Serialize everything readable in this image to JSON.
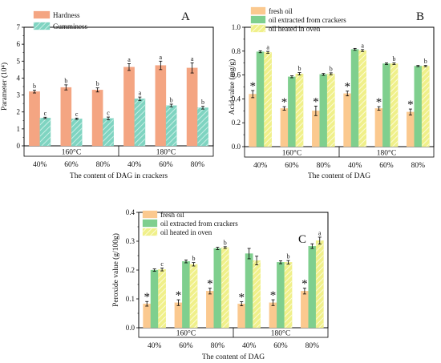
{
  "chart_data": [
    {
      "panel": "A",
      "type": "bar",
      "ylabel": "Parameter (10⁴)",
      "xlabel": "The content of DAG in crackers",
      "ylim": [
        0,
        7
      ],
      "yticks": [
        "0",
        "1",
        "2",
        "3",
        "4",
        "5",
        "6",
        "7"
      ],
      "categories": [
        "40%",
        "60%",
        "80%",
        "40%",
        "60%",
        "80%"
      ],
      "groups": [
        "160°C",
        "180°C"
      ],
      "legend": "top-left",
      "series": [
        {
          "name": "Hardness",
          "color": "#f4a582",
          "pattern": "solid",
          "values": [
            3.2,
            3.45,
            3.3,
            4.65,
            4.75,
            4.6
          ],
          "errors": [
            0.08,
            0.15,
            0.12,
            0.2,
            0.25,
            0.3
          ],
          "labels": [
            "b",
            "b",
            "b",
            "a",
            "a",
            "a"
          ]
        },
        {
          "name": "Gumminess",
          "color": "#7fd4c1",
          "pattern": "hatch",
          "values": [
            1.65,
            1.6,
            1.62,
            2.78,
            2.38,
            2.25
          ],
          "errors": [
            0.04,
            0.04,
            0.08,
            0.1,
            0.08,
            0.08
          ],
          "labels": [
            "c",
            "c",
            "c",
            "a",
            "b",
            "b"
          ]
        }
      ]
    },
    {
      "panel": "B",
      "type": "bar",
      "ylabel": "Acid value (mg/g)",
      "xlabel": "The content of DAG",
      "ylim": [
        0,
        1.0
      ],
      "yticks": [
        "0.0",
        "0.2",
        "0.4",
        "0.6",
        "0.8",
        "1.0"
      ],
      "categories": [
        "40%",
        "60%",
        "80%",
        "40%",
        "60%",
        "80%"
      ],
      "groups": [
        "160°C",
        "180°C"
      ],
      "legend": "top-left",
      "series": [
        {
          "name": "fresh oil",
          "color": "#fbc98f",
          "pattern": "solid",
          "values": [
            0.44,
            0.32,
            0.3,
            0.445,
            0.32,
            0.29
          ],
          "errors": [
            0.03,
            0.015,
            0.04,
            0.02,
            0.015,
            0.025
          ],
          "labels": [
            "*",
            "*",
            "*",
            "*",
            "*",
            "*"
          ]
        },
        {
          "name": "oil extracted from crackers",
          "color": "#7fcf8e",
          "pattern": "solid",
          "values": [
            0.795,
            0.585,
            0.605,
            0.815,
            0.695,
            0.675
          ],
          "errors": [
            0.008,
            0.008,
            0.008,
            0.008,
            0.006,
            0.005
          ],
          "labels": [
            "",
            "",
            "",
            "",
            "",
            ""
          ]
        },
        {
          "name": "oil heated in oven",
          "color": "#f0f08a",
          "pattern": "hatch",
          "values": [
            0.79,
            0.61,
            0.61,
            0.805,
            0.695,
            0.675
          ],
          "errors": [
            0.008,
            0.01,
            0.008,
            0.008,
            0.006,
            0.005
          ],
          "labels": [
            "a",
            "b",
            "b",
            "a",
            "b",
            "b"
          ]
        }
      ]
    },
    {
      "panel": "C",
      "type": "bar",
      "ylabel": "Peroxide value (g/100g)",
      "xlabel": "The content of DAG",
      "ylim": [
        0,
        0.4
      ],
      "yticks": [
        "0.0",
        "0.1",
        "0.2",
        "0.3",
        "0.4"
      ],
      "categories": [
        "40%",
        "60%",
        "80%",
        "40%",
        "60%",
        "80%"
      ],
      "groups": [
        "160°C",
        "180°C"
      ],
      "legend": "top-left",
      "series": [
        {
          "name": "fresh oil",
          "color": "#fbc98f",
          "pattern": "solid",
          "values": [
            0.083,
            0.087,
            0.127,
            0.083,
            0.087,
            0.127
          ],
          "errors": [
            0.008,
            0.01,
            0.01,
            0.007,
            0.01,
            0.01
          ],
          "labels": [
            "*",
            "*",
            "*",
            "*",
            "*",
            "*"
          ]
        },
        {
          "name": "oil extracted from crackers",
          "color": "#7fcf8e",
          "pattern": "solid",
          "values": [
            0.2,
            0.23,
            0.275,
            0.257,
            0.227,
            0.283
          ],
          "errors": [
            0.004,
            0.005,
            0.004,
            0.018,
            0.005,
            0.008
          ],
          "labels": [
            "",
            "",
            "",
            "",
            "",
            ""
          ]
        },
        {
          "name": "oil heated in oven",
          "color": "#f0f08a",
          "pattern": "hatch",
          "values": [
            0.202,
            0.22,
            0.278,
            0.233,
            0.227,
            0.302
          ],
          "errors": [
            0.005,
            0.006,
            0.003,
            0.015,
            0.006,
            0.012
          ],
          "labels": [
            "c",
            "b",
            "b",
            "",
            "b",
            "a"
          ]
        }
      ]
    }
  ]
}
